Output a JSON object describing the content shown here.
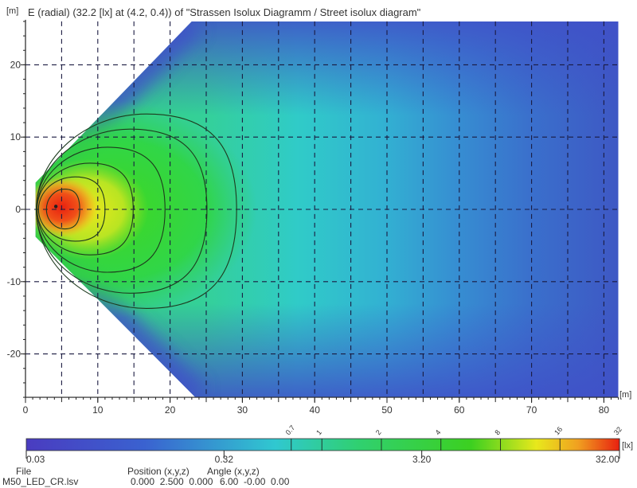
{
  "chart_data": {
    "type": "heatmap",
    "title": "E (radial) (32.2 [lx] at (4.2, 0.4)) of \"Strassen Isolux Diagramm / Street isolux diagram\"",
    "xlabel": "[m]",
    "ylabel": "[m]",
    "xlim": [
      0,
      82
    ],
    "ylim": [
      -26,
      26
    ],
    "x_ticks": [
      0,
      10,
      20,
      30,
      40,
      50,
      60,
      70,
      80
    ],
    "y_ticks": [
      -20,
      -10,
      0,
      10,
      20
    ],
    "grid": true,
    "max_value": 32.2,
    "max_position": [
      4.2,
      0.4
    ],
    "contours": [
      {
        "level": 16,
        "x_min": 2.9,
        "x_max": 7.5,
        "y_max": 2.8,
        "y_min": -2.7
      },
      {
        "level": 8,
        "x_min": 1.8,
        "x_max": 11,
        "y_max": 4.5,
        "y_min": -4.4
      },
      {
        "level": 4,
        "x_min": 1.6,
        "x_max": 14.9,
        "y_max": 6.4,
        "y_min": -6.3
      },
      {
        "level": 2,
        "x_min": 1.6,
        "x_max": 19.3,
        "y_max": 8.6,
        "y_min": -8.7
      },
      {
        "level": 1,
        "x_min": 1.5,
        "x_max": 25.1,
        "y_max": 11.1,
        "y_min": -11.6
      },
      {
        "level": 0.7,
        "x_min": 1.5,
        "x_max": 29.2,
        "y_max": 13.2,
        "y_min": -13.7
      }
    ],
    "colorbar": {
      "scale": "log",
      "range": [
        0.032,
        32
      ],
      "unit": "[lx]",
      "tick_labels": [
        "0.03",
        "0.32",
        "3.20",
        "32.00"
      ],
      "tick_values": [
        0.032,
        0.32,
        3.2,
        32
      ],
      "contour_marks": [
        "0.7",
        "1",
        "2",
        "4",
        "8",
        "16",
        "32"
      ],
      "contour_values": [
        0.7,
        1,
        2,
        4,
        8,
        16,
        32
      ],
      "colors": [
        "#4a3cc0",
        "#3a6ad0",
        "#30c8d0",
        "#30d070",
        "#3cd020",
        "#e8e81c",
        "#f0a020",
        "#e82010"
      ]
    }
  },
  "info": {
    "file_label": "File",
    "file_name": "M50_LED_CR.lsv",
    "position_label": "Position (x,y,z)",
    "position_values": "0.000  2.500  0.000",
    "angle_label": "Angle (x,y,z)",
    "angle_values": "6.00  -0.00  0.00"
  }
}
